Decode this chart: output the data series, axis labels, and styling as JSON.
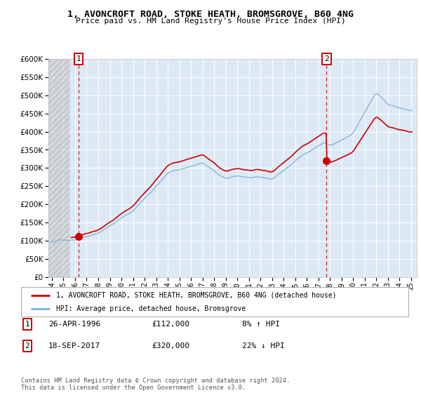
{
  "title": "1, AVONCROFT ROAD, STOKE HEATH, BROMSGROVE, B60 4NG",
  "subtitle": "Price paid vs. HM Land Registry's House Price Index (HPI)",
  "legend_line1": "1, AVONCROFT ROAD, STOKE HEATH, BROMSGROVE, B60 4NG (detached house)",
  "legend_line2": "HPI: Average price, detached house, Bromsgrove",
  "annotation1_label": "1",
  "annotation1_date": "26-APR-1996",
  "annotation1_price": "£112,000",
  "annotation1_hpi": "8% ↑ HPI",
  "annotation2_label": "2",
  "annotation2_date": "18-SEP-2017",
  "annotation2_price": "£320,000",
  "annotation2_hpi": "22% ↓ HPI",
  "footnote": "Contains HM Land Registry data © Crown copyright and database right 2024.\nThis data is licensed under the Open Government Licence v3.0.",
  "hpi_color": "#7bafd4",
  "price_color": "#cc0000",
  "dashed_color": "#cc0000",
  "background_plot": "#dce9f5",
  "ylim": [
    0,
    600000
  ],
  "yticks": [
    0,
    50000,
    100000,
    150000,
    200000,
    250000,
    300000,
    350000,
    400000,
    450000,
    500000,
    550000,
    600000
  ],
  "sale1_x": 1996.29,
  "sale1_y": 112000,
  "sale2_x": 2017.71,
  "sale2_y": 320000,
  "xlim_start": 1993.7,
  "xlim_end": 2025.5,
  "hatch_end": 1995.5,
  "xticks": [
    1994,
    1995,
    1996,
    1997,
    1998,
    1999,
    2000,
    2001,
    2002,
    2003,
    2004,
    2005,
    2006,
    2007,
    2008,
    2009,
    2010,
    2011,
    2012,
    2013,
    2014,
    2015,
    2016,
    2017,
    2018,
    2019,
    2020,
    2021,
    2022,
    2023,
    2024,
    2025
  ]
}
